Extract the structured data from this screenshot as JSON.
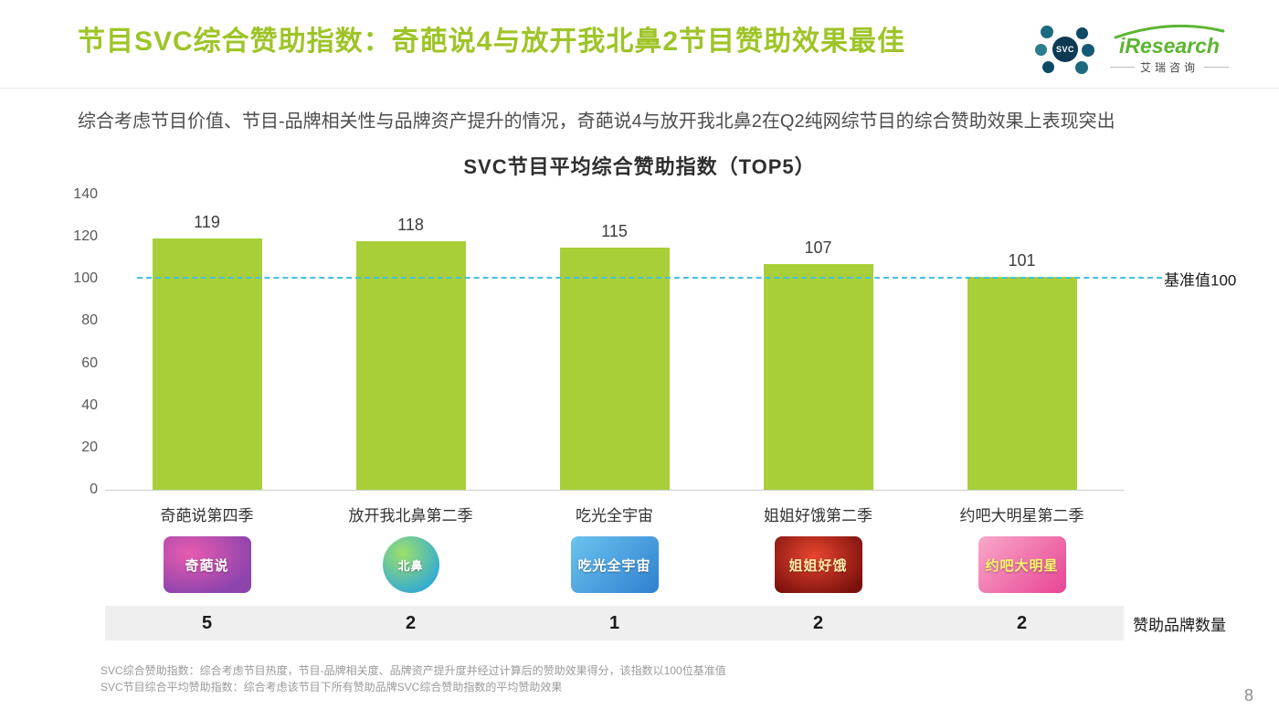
{
  "header": {
    "title": "节目SVC综合赞助指数：奇葩说4与放开我北鼻2节目赞助效果最佳",
    "logo": {
      "brand": "iResearch",
      "brand_cn": "艾瑞咨询",
      "svc_badge": "SVC"
    }
  },
  "intro": "综合考虑节目价值、节目-品牌相关性与品牌资产提升的情况，奇葩说4与放开我北鼻2在Q2纯网综节目的综合赞助效果上表现突出",
  "chart_data": {
    "type": "bar",
    "title": "SVC节目平均综合赞助指数（TOP5）",
    "categories": [
      "奇葩说第四季",
      "放开我北鼻第二季",
      "吃光全宇宙",
      "姐姐好饿第二季",
      "约吧大明星第二季"
    ],
    "values": [
      119,
      118,
      115,
      107,
      101
    ],
    "ylim": [
      0,
      140
    ],
    "yticks": [
      0,
      20,
      40,
      60,
      80,
      100,
      120,
      140
    ],
    "baseline_value": 100,
    "baseline_label": "基准值100",
    "bar_color": "#a8cf38",
    "baseline_color": "#45c1e0",
    "grid": false,
    "legend_position": "none"
  },
  "show_logos": [
    "奇葩说",
    "北鼻",
    "吃光全宇宙",
    "姐姐好饿",
    "约吧大明星"
  ],
  "sponsor_row": {
    "counts": [
      5,
      2,
      1,
      2,
      2
    ],
    "label": "赞助品牌数量"
  },
  "footnotes": [
    "SVC综合赞助指数：综合考虑节目热度，节目-品牌相关度、品牌资产提升度并经过计算后的赞助效果得分，该指数以100位基准值",
    "SVC节目综合平均赞助指数：综合考虑该节目下所有赞助品牌SVC综合赞助指数的平均赞助效果"
  ],
  "page_number": "8"
}
